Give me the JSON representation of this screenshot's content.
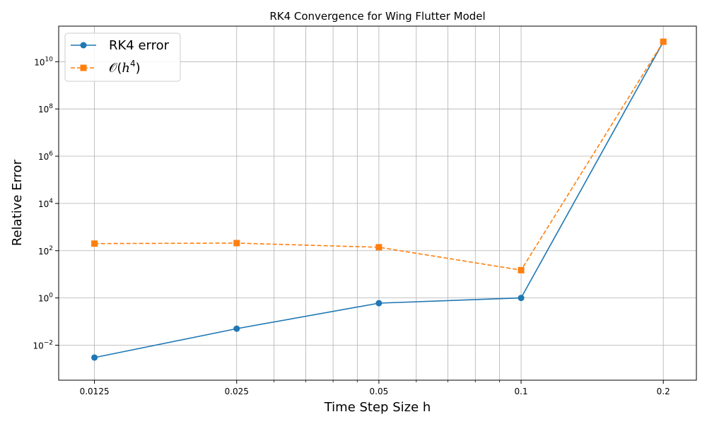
{
  "chart_data": {
    "type": "line",
    "title": "RK4 Convergence for Wing Flutter Model",
    "xlabel": "Time Step Size h",
    "ylabel": "Relative Error",
    "x_scale": "log2",
    "y_scale": "log10",
    "x": [
      0.0125,
      0.025,
      0.05,
      0.1,
      0.2
    ],
    "x_tick_labels": [
      "0.0125",
      "0.025",
      "0.05",
      "0.1",
      "0.2"
    ],
    "xlim": [
      0.0105,
      0.235
    ],
    "ylim": [
      0.00033,
      320000000000.0
    ],
    "y_ticks": [
      {
        "value": 0.01,
        "base": "10",
        "exp": "−2"
      },
      {
        "value": 1,
        "base": "10",
        "exp": "0"
      },
      {
        "value": 100,
        "base": "10",
        "exp": "2"
      },
      {
        "value": 10000,
        "base": "10",
        "exp": "4"
      },
      {
        "value": 1000000,
        "base": "10",
        "exp": "6"
      },
      {
        "value": 100000000,
        "base": "10",
        "exp": "8"
      },
      {
        "value": 10000000000,
        "base": "10",
        "exp": "10"
      }
    ],
    "x_minor_ticks": [
      0.03,
      0.035,
      0.04,
      0.045,
      0.06,
      0.07,
      0.08,
      0.09
    ],
    "grid": true,
    "legend_position": "top-left",
    "series": [
      {
        "name": "RK4 error",
        "values": [
          0.003,
          0.05,
          0.6,
          1.0,
          70000000000.0
        ],
        "color": "#1f77b4",
        "linestyle": "solid",
        "marker": "circle"
      },
      {
        "name_prefix": "𝒪(",
        "name_var": "h",
        "name_exp": "4",
        "name_suffix": ")",
        "values": [
          200,
          210,
          140,
          15,
          70000000000.0
        ],
        "color": "#ff7f0e",
        "linestyle": "dashed",
        "marker": "square"
      }
    ]
  }
}
